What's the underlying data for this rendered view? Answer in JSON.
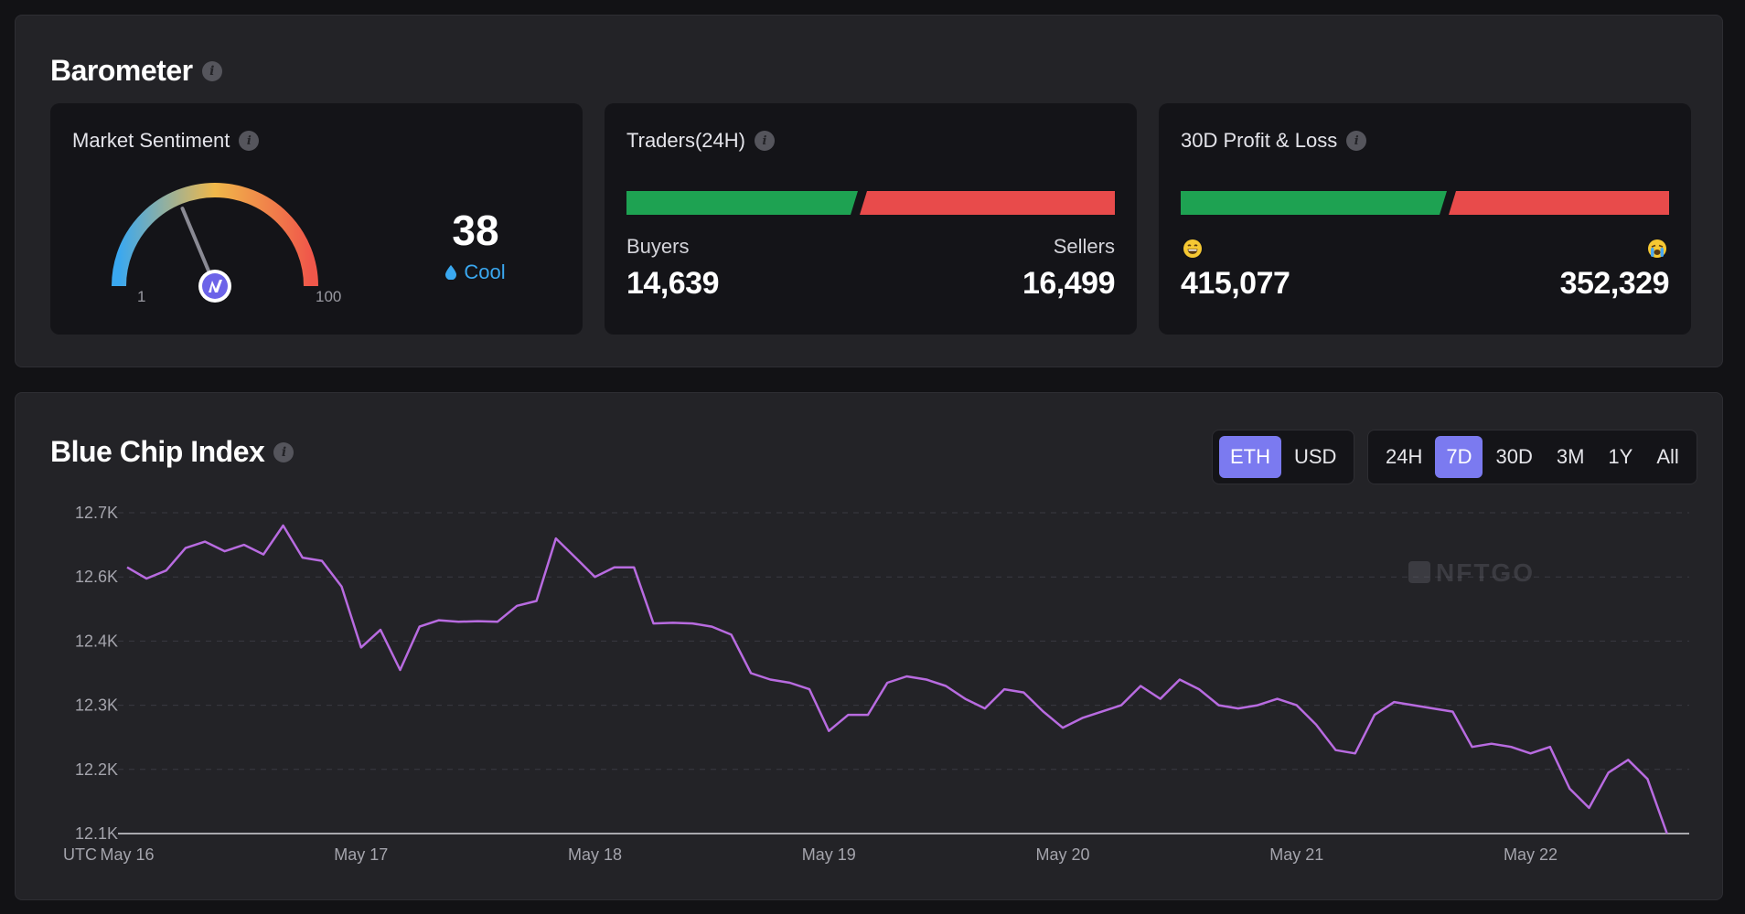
{
  "barometer": {
    "title": "Barometer",
    "info_icon": "info-icon",
    "market_sentiment": {
      "title": "Market Sentiment",
      "value": "38",
      "level": 38,
      "label": "Cool",
      "label_icon": "drop-icon",
      "scale_min": "1",
      "scale_max": "100",
      "colors": {
        "start": "#3aa8f0",
        "mid": "#f0b84a",
        "end": "#f0574a",
        "label": "#3aa8f0"
      }
    },
    "traders": {
      "title": "Traders(24H)",
      "left_label": "Buyers",
      "left_value": "14,639",
      "right_label": "Sellers",
      "right_value": "16,499",
      "left_share": 0.4701
    },
    "profit_loss": {
      "title": "30D Profit & Loss",
      "left_icon": "grinning-face-icon",
      "left_value": "415,077",
      "right_icon": "crying-face-icon",
      "right_value": "352,329",
      "left_share": 0.5409
    },
    "colors": {
      "positive": "#1ea252",
      "negative": "#e84b4b"
    }
  },
  "blue_chip": {
    "title": "Blue Chip Index",
    "currency_toggle": [
      {
        "label": "ETH",
        "active": true
      },
      {
        "label": "USD",
        "active": false
      }
    ],
    "range_toggle": [
      {
        "label": "24H",
        "active": false
      },
      {
        "label": "7D",
        "active": true
      },
      {
        "label": "30D",
        "active": false
      },
      {
        "label": "3M",
        "active": false
      },
      {
        "label": "1Y",
        "active": false
      },
      {
        "label": "All",
        "active": false
      }
    ],
    "watermark": "NFTGO",
    "timezone_label": "UTC"
  },
  "chart_data": {
    "type": "line",
    "title": "Blue Chip Index",
    "xlabel": "",
    "ylabel": "",
    "y_tick_labels": [
      "12.1K",
      "12.2K",
      "12.3K",
      "12.4K",
      "12.6K",
      "12.7K"
    ],
    "x_tick_labels": [
      "May 16",
      "May 17",
      "May 18",
      "May 19",
      "May 20",
      "May 21",
      "May 22"
    ],
    "x_range_days": [
      0,
      6.6
    ],
    "grid": true,
    "line_color": "#b86be0",
    "series": [
      {
        "x": [
          0,
          0.083,
          0.167,
          0.25,
          0.333,
          0.417,
          0.5,
          0.583,
          0.667,
          0.75,
          0.833,
          0.917,
          1.0,
          1.083,
          1.167,
          1.25,
          1.333,
          1.417,
          1.5,
          1.583,
          1.667,
          1.75,
          1.833,
          1.917,
          2.0,
          2.083,
          2.167,
          2.25,
          2.333,
          2.417,
          2.5,
          2.583,
          2.667,
          2.75,
          2.833,
          2.917,
          3.0,
          3.083,
          3.167,
          3.25,
          3.333,
          3.417,
          3.5,
          3.583,
          3.667,
          3.75,
          3.833,
          3.917,
          4.0,
          4.083,
          4.167,
          4.25,
          4.333,
          4.417,
          4.5,
          4.583,
          4.667,
          4.75,
          4.833,
          4.917,
          5.0,
          5.083,
          5.167,
          5.25,
          5.333,
          5.417,
          5.5,
          5.583,
          5.667,
          5.75,
          5.833,
          5.917,
          6.0,
          6.083,
          6.167,
          6.25,
          6.333,
          6.417,
          6.5,
          6.583
        ],
        "values": [
          12.615,
          12.595,
          12.61,
          12.645,
          12.655,
          12.64,
          12.65,
          12.635,
          12.68,
          12.63,
          12.625,
          12.57,
          12.39,
          12.435,
          12.355,
          12.445,
          12.465,
          12.46,
          12.462,
          12.46,
          12.51,
          12.525,
          12.66,
          12.63,
          12.6,
          12.615,
          12.615,
          12.455,
          12.457,
          12.455,
          12.445,
          12.42,
          12.35,
          12.34,
          12.335,
          12.325,
          12.26,
          12.285,
          12.285,
          12.335,
          12.345,
          12.34,
          12.33,
          12.31,
          12.295,
          12.325,
          12.32,
          12.29,
          12.265,
          12.28,
          12.29,
          12.3,
          12.33,
          12.31,
          12.34,
          12.325,
          12.3,
          12.295,
          12.3,
          12.31,
          12.3,
          12.27,
          12.23,
          12.225,
          12.285,
          12.305,
          12.3,
          12.295,
          12.29,
          12.235,
          12.24,
          12.235,
          12.225,
          12.235,
          12.17,
          12.14,
          12.195,
          12.215,
          12.185,
          12.1
        ]
      }
    ]
  }
}
